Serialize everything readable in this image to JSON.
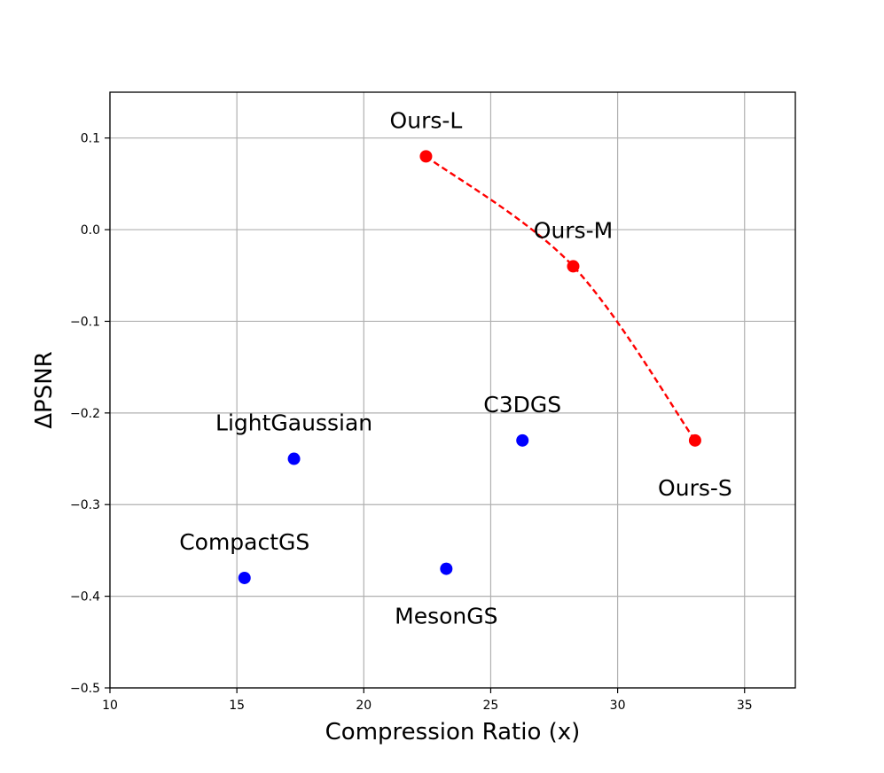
{
  "chart_data": {
    "type": "scatter",
    "title": "",
    "xlabel": "Compression Ratio (x)",
    "ylabel": "ΔPSNR",
    "xlim": [
      10,
      37
    ],
    "ylim": [
      -0.5,
      0.15
    ],
    "xticks": [
      10,
      15,
      20,
      25,
      30,
      35
    ],
    "yticks": [
      -0.5,
      -0.4,
      -0.3,
      -0.2,
      -0.1,
      0.0,
      0.1
    ],
    "xtick_labels": [
      "10",
      "15",
      "20",
      "25",
      "30",
      "35"
    ],
    "ytick_labels": [
      "−0.5",
      "−0.4",
      "−0.3",
      "−0.2",
      "−0.1",
      "0.0",
      "0.1"
    ],
    "grid": true,
    "series": [
      {
        "color": "#0000ff",
        "points": [
          {
            "label": "LightGaussian",
            "x": 17.25,
            "y": -0.25,
            "label_pos": "above"
          },
          {
            "label": "C3DGS",
            "x": 26.25,
            "y": -0.23,
            "label_pos": "above"
          },
          {
            "label": "CompactGS",
            "x": 15.3,
            "y": -0.38,
            "label_pos": "above"
          },
          {
            "label": "MesonGS",
            "x": 23.25,
            "y": -0.37,
            "label_pos": "below"
          }
        ]
      },
      {
        "color": "#ff0000",
        "dashed_curve": true,
        "points": [
          {
            "label": "Ours-L",
            "x": 22.45,
            "y": 0.08,
            "label_pos": "above"
          },
          {
            "label": "Ours-M",
            "x": 28.25,
            "y": -0.04,
            "label_pos": "above"
          },
          {
            "label": "Ours-S",
            "x": 33.05,
            "y": -0.23,
            "label_pos": "below"
          }
        ]
      }
    ]
  }
}
